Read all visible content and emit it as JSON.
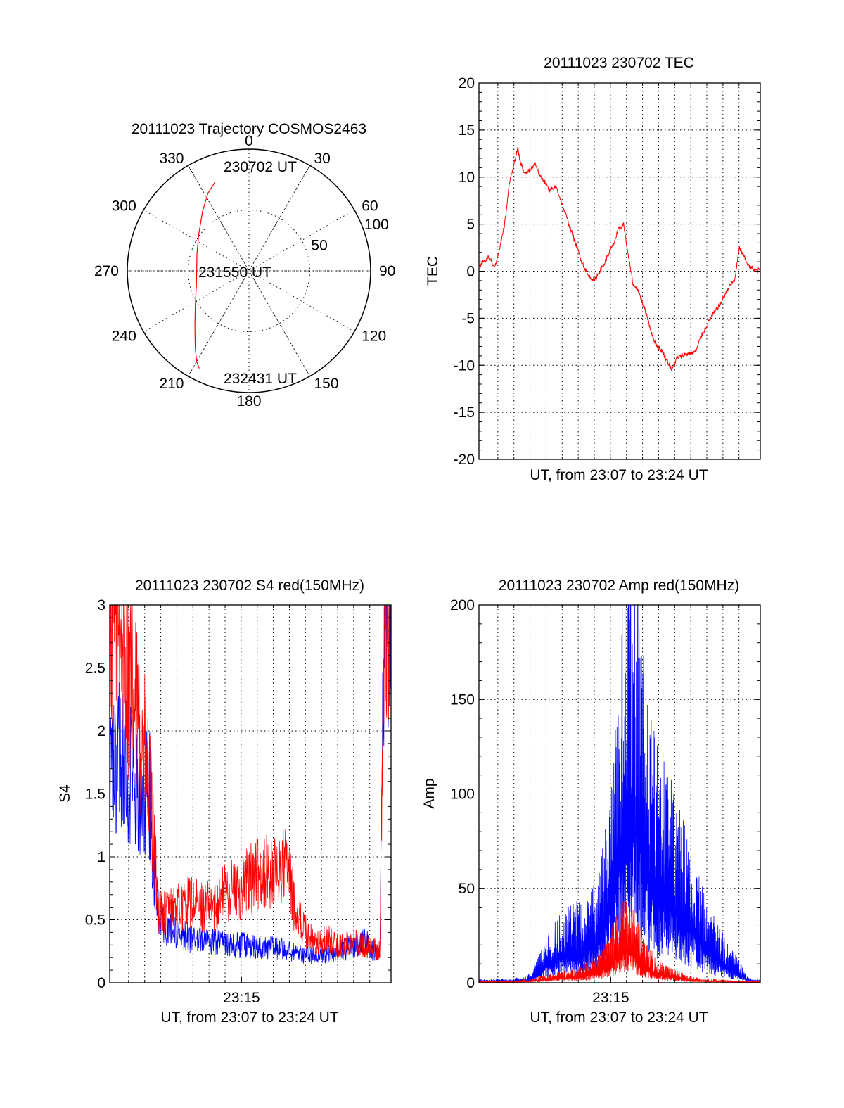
{
  "colors": {
    "red": "#ff0000",
    "blue": "#0000ff",
    "axis": "#000000",
    "background": "#ffffff"
  },
  "chart_data": [
    {
      "type": "polar",
      "title": "20111023 Trajectory COSMOS2463",
      "angle_labels": [
        "0",
        "30",
        "60",
        "90",
        "120",
        "150",
        "180",
        "210",
        "240",
        "270",
        "300",
        "330"
      ],
      "angle_values": [
        0,
        30,
        60,
        90,
        120,
        150,
        180,
        210,
        240,
        270,
        300,
        330
      ],
      "radius_labels": [
        "50",
        "100"
      ],
      "radius_values": [
        50,
        100
      ],
      "rlim": [
        0,
        100
      ],
      "grid": true,
      "annotations": [
        "230702 UT",
        "231550 UT",
        "232431 UT"
      ],
      "series": [
        {
          "color": "red",
          "points": [
            {
              "az": 339,
              "r": 78
            },
            {
              "az": 332,
              "r": 72
            },
            {
              "az": 322,
              "r": 62
            },
            {
              "az": 306,
              "r": 51
            },
            {
              "az": 288,
              "r": 45
            },
            {
              "az": 272,
              "r": 43
            },
            {
              "az": 254,
              "r": 45
            },
            {
              "az": 238,
              "r": 52
            },
            {
              "az": 224,
              "r": 64
            },
            {
              "az": 215,
              "r": 77
            },
            {
              "az": 210,
              "r": 86
            },
            {
              "az": 207,
              "r": 90
            }
          ]
        }
      ]
    },
    {
      "type": "line",
      "title": "20111023 230702 TEC",
      "xlabel": "UT, from 23:07 to 23:24 UT",
      "ylabel": "TEC",
      "xlim": [
        0,
        17.5
      ],
      "ylim": [
        -20,
        20
      ],
      "yticks": [
        "-20",
        "-15",
        "-10",
        "-5",
        "0",
        "5",
        "10",
        "15",
        "20"
      ],
      "ytick_values": [
        -20,
        -15,
        -10,
        -5,
        0,
        5,
        10,
        15,
        20
      ],
      "xticks": [],
      "grid": true,
      "series": [
        {
          "color": "red",
          "x": [
            0,
            0.3,
            0.6,
            1.0,
            1.3,
            1.6,
            1.9,
            2.2,
            2.4,
            2.6,
            2.8,
            3.0,
            3.2,
            3.5,
            3.8,
            4.1,
            4.4,
            4.8,
            5.2,
            5.6,
            6.0,
            6.4,
            6.8,
            7.2,
            7.5,
            7.8,
            8.1,
            8.4,
            8.7,
            9.0,
            9.3,
            9.6,
            9.9,
            10.2,
            10.5,
            10.8,
            11.1,
            11.4,
            11.7,
            12.0,
            12.3,
            12.6,
            12.9,
            13.2,
            13.5,
            13.8,
            14.1,
            14.4,
            14.7,
            15.0,
            15.3,
            15.6,
            15.9,
            16.2,
            16.5,
            16.8,
            17.1,
            17.3,
            17.5
          ],
          "y": [
            0.5,
            1.0,
            1.5,
            0.5,
            2.5,
            5.0,
            9.5,
            11.5,
            13.0,
            11.5,
            10.5,
            10.5,
            10.8,
            11.5,
            10.0,
            9.5,
            8.5,
            9.0,
            7.0,
            5.0,
            3.0,
            1.0,
            -0.5,
            -1.0,
            0.0,
            0.8,
            2.0,
            3.0,
            4.5,
            5.0,
            1.5,
            -1.5,
            -2.0,
            -3.5,
            -5.0,
            -7.0,
            -8.0,
            -8.5,
            -9.5,
            -10.5,
            -9.3,
            -9.0,
            -8.8,
            -8.7,
            -8.5,
            -7.0,
            -6.0,
            -5.0,
            -4.2,
            -3.5,
            -2.5,
            -1.5,
            -1.0,
            2.5,
            1.5,
            0.5,
            0.2,
            0.0,
            0.3
          ]
        }
      ]
    },
    {
      "type": "line",
      "title": "20111023 230702 S4 red(150MHz)",
      "xlabel": "UT, from 23:07 to 23:24 UT",
      "ylabel": "S4",
      "xlim": [
        0,
        17.5
      ],
      "ylim": [
        0,
        3
      ],
      "yticks": [
        "0",
        "0.5",
        "1",
        "1.5",
        "2",
        "2.5",
        "3"
      ],
      "ytick_values": [
        0,
        0.5,
        1,
        1.5,
        2,
        2.5,
        3
      ],
      "xticks": [
        "23:15"
      ],
      "xtick_values": [
        8.2
      ],
      "grid": true,
      "series": [
        {
          "color": "blue",
          "x": [
            0,
            0.5,
            1.0,
            1.5,
            2.0,
            2.5,
            2.8,
            3.0,
            3.5,
            4.0,
            4.5,
            5.0,
            5.5,
            6.0,
            6.5,
            7.0,
            7.5,
            8.0,
            8.5,
            9.0,
            9.5,
            10.0,
            10.5,
            11.0,
            11.5,
            12.0,
            12.5,
            13.0,
            13.5,
            14.0,
            14.5,
            15.0,
            15.5,
            16.0,
            16.4,
            16.8,
            17.1,
            17.5
          ],
          "y": [
            1.6,
            1.8,
            1.7,
            1.6,
            1.5,
            1.5,
            0.8,
            0.6,
            0.45,
            0.4,
            0.38,
            0.35,
            0.33,
            0.33,
            0.32,
            0.32,
            0.3,
            0.3,
            0.3,
            0.29,
            0.28,
            0.28,
            0.27,
            0.26,
            0.25,
            0.23,
            0.22,
            0.22,
            0.22,
            0.24,
            0.26,
            0.28,
            0.3,
            0.33,
            0.25,
            0.2,
            3.0,
            3.0
          ]
        },
        {
          "color": "red",
          "x": [
            0,
            0.5,
            1.0,
            1.5,
            2.0,
            2.5,
            2.8,
            3.0,
            3.5,
            4.0,
            4.5,
            5.0,
            5.5,
            6.0,
            6.5,
            7.0,
            7.5,
            8.0,
            8.5,
            9.0,
            9.5,
            10.0,
            10.5,
            11.0,
            11.5,
            12.0,
            12.5,
            13.0,
            13.5,
            14.0,
            14.5,
            15.0,
            15.5,
            16.0,
            16.4,
            16.8,
            17.1,
            17.5
          ],
          "y": [
            2.8,
            3.0,
            2.6,
            2.2,
            2.0,
            1.5,
            1.0,
            0.6,
            0.55,
            0.6,
            0.6,
            0.65,
            0.6,
            0.6,
            0.6,
            0.7,
            0.75,
            0.7,
            0.8,
            0.85,
            0.9,
            0.85,
            0.9,
            0.95,
            0.6,
            0.45,
            0.35,
            0.3,
            0.35,
            0.3,
            0.3,
            0.35,
            0.3,
            0.3,
            0.28,
            0.25,
            3.0,
            3.0
          ]
        }
      ]
    },
    {
      "type": "line",
      "title": "20111023 230702 Amp red(150MHz)",
      "xlabel": "UT, from 23:07 to 23:24 UT",
      "ylabel": "Amp",
      "xlim": [
        0,
        17.5
      ],
      "ylim": [
        0,
        200
      ],
      "yticks": [
        "0",
        "50",
        "100",
        "150",
        "200"
      ],
      "ytick_values": [
        0,
        50,
        100,
        150,
        200
      ],
      "xticks": [
        "23:15"
      ],
      "xtick_values": [
        8.2
      ],
      "grid": true,
      "series": [
        {
          "color": "blue",
          "x": [
            0,
            1.0,
            2.0,
            3.0,
            3.5,
            4.0,
            4.5,
            5.0,
            5.5,
            6.0,
            6.5,
            7.0,
            7.5,
            8.0,
            8.5,
            9.0,
            9.3,
            9.6,
            10.0,
            10.5,
            11.0,
            11.5,
            12.0,
            12.5,
            13.0,
            13.5,
            14.0,
            14.5,
            15.0,
            15.5,
            16.0,
            16.5,
            17.0,
            17.5
          ],
          "y": [
            1,
            1,
            1,
            2,
            5,
            10,
            15,
            18,
            20,
            22,
            22,
            25,
            30,
            45,
            70,
            110,
            130,
            120,
            100,
            75,
            65,
            60,
            55,
            50,
            40,
            35,
            25,
            20,
            15,
            10,
            8,
            3,
            1,
            1
          ]
        },
        {
          "color": "red",
          "x": [
            0,
            1.0,
            2.0,
            3.0,
            4.0,
            5.0,
            6.0,
            7.0,
            7.5,
            8.0,
            8.5,
            9.0,
            9.3,
            9.6,
            10.0,
            10.5,
            11.0,
            11.5,
            12.0,
            12.5,
            13.0,
            14.0,
            15.0,
            16.0,
            17.5
          ],
          "y": [
            0.5,
            0.5,
            0.5,
            1,
            2,
            3,
            4,
            6,
            8,
            12,
            18,
            22,
            24,
            20,
            15,
            10,
            7,
            5,
            4,
            3,
            2,
            1,
            1,
            0.5,
            0.5
          ]
        }
      ]
    }
  ]
}
